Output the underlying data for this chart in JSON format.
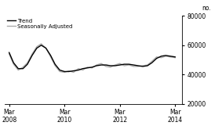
{
  "title": "",
  "ylabel": "no.",
  "ylim": [
    20000,
    80000
  ],
  "yticks": [
    20000,
    40000,
    60000,
    80000
  ],
  "legend_entries": [
    "Trend",
    "Seasonally Adjusted"
  ],
  "trend_color": "#000000",
  "seasonal_color": "#aaaaaa",
  "background_color": "#ffffff",
  "trend_data": {
    "x": [
      2008.17,
      2008.33,
      2008.5,
      2008.67,
      2008.83,
      2009.0,
      2009.17,
      2009.33,
      2009.5,
      2009.67,
      2009.83,
      2010.0,
      2010.17,
      2010.33,
      2010.5,
      2010.67,
      2010.83,
      2011.0,
      2011.17,
      2011.33,
      2011.5,
      2011.67,
      2011.83,
      2012.0,
      2012.17,
      2012.33,
      2012.5,
      2012.67,
      2012.83,
      2013.0,
      2013.17,
      2013.33,
      2013.5,
      2013.67,
      2013.83,
      2014.0,
      2014.17
    ],
    "y": [
      55000,
      48000,
      44000,
      44000,
      47000,
      53000,
      58000,
      60000,
      58000,
      53000,
      47000,
      43000,
      42000,
      42000,
      42500,
      43000,
      44000,
      44500,
      45000,
      46000,
      46500,
      46500,
      46000,
      46000,
      46500,
      47000,
      47000,
      46500,
      46000,
      45500,
      46000,
      48000,
      51000,
      52500,
      53000,
      52500,
      52000
    ]
  },
  "seasonal_data": {
    "x": [
      2008.17,
      2008.33,
      2008.5,
      2008.67,
      2008.83,
      2009.0,
      2009.17,
      2009.33,
      2009.5,
      2009.67,
      2009.83,
      2010.0,
      2010.17,
      2010.33,
      2010.5,
      2010.67,
      2010.83,
      2011.0,
      2011.17,
      2011.33,
      2011.5,
      2011.67,
      2011.83,
      2012.0,
      2012.17,
      2012.33,
      2012.5,
      2012.67,
      2012.83,
      2013.0,
      2013.17,
      2013.33,
      2013.5,
      2013.67,
      2013.83,
      2014.0,
      2014.17
    ],
    "y": [
      54000,
      47000,
      43000,
      45000,
      48000,
      54000,
      59000,
      61000,
      58000,
      52000,
      46000,
      42000,
      41500,
      42500,
      41500,
      44000,
      43000,
      45000,
      44500,
      46500,
      47500,
      45500,
      45000,
      46500,
      47500,
      46000,
      46500,
      45500,
      45500,
      46000,
      46500,
      49000,
      52000,
      51500,
      52500,
      52000,
      51500
    ]
  },
  "xtick_positions": [
    2008.17,
    2010.17,
    2012.17,
    2014.17
  ],
  "xtick_labels": [
    "Mar\n2008",
    "Mar\n2010",
    "Mar\n2012",
    "Mar\n2014"
  ],
  "xlim": [
    2008.0,
    2014.42
  ],
  "linewidth": 1.0
}
